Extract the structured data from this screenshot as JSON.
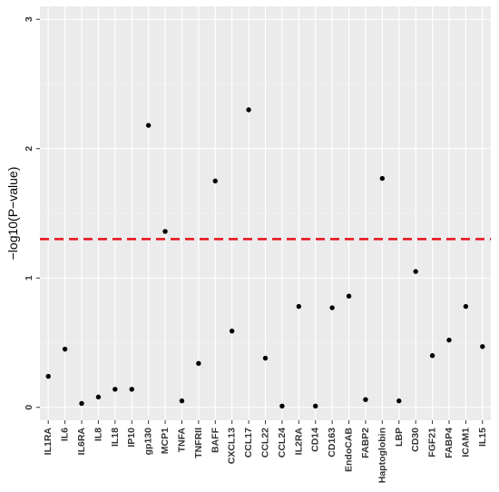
{
  "chart_data": {
    "type": "scatter",
    "title": "",
    "xlabel": "",
    "ylabel": "−log10(P−value)",
    "ylim": [
      -0.1,
      3.1
    ],
    "yticks": [
      0,
      1,
      2,
      3
    ],
    "grid": true,
    "categories": [
      "IL1RA",
      "IL6",
      "IL6RA",
      "IL8",
      "IL18",
      "IP10",
      "gp130",
      "MCP1",
      "TNFA",
      "TNFRII",
      "BAFF",
      "CXCL13",
      "CCL17",
      "CCL22",
      "CCL24",
      "IL2RA",
      "CD14",
      "CD163",
      "EndoCAB",
      "FABP2",
      "Haptoglobin",
      "LBP",
      "CD30",
      "FGF21",
      "FABP4",
      "ICAM1",
      "IL15"
    ],
    "values": [
      0.24,
      0.45,
      0.03,
      0.08,
      0.14,
      0.14,
      2.18,
      1.36,
      0.05,
      0.34,
      1.75,
      0.59,
      2.3,
      0.38,
      0.01,
      0.78,
      0.01,
      0.77,
      0.86,
      0.06,
      1.77,
      0.05,
      1.05,
      0.4,
      0.52,
      0.78,
      0.47
    ],
    "threshold": {
      "value": 1.30103,
      "color": "#e8101a",
      "style": "dashed"
    },
    "colors": {
      "panel": "#ebebeb",
      "grid_major": "#ffffff",
      "point": "#000000"
    }
  }
}
